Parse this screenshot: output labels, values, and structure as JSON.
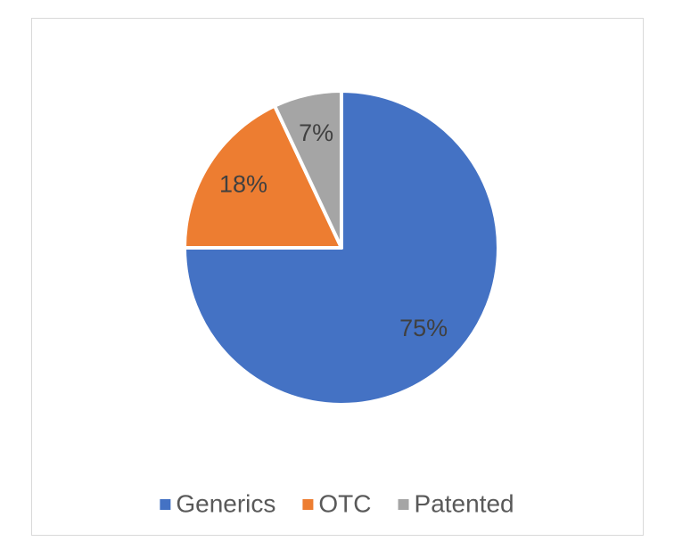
{
  "chart_data": {
    "type": "pie",
    "categories": [
      "Generics",
      "OTC",
      "Patented"
    ],
    "values": [
      75,
      18,
      7
    ],
    "value_labels": [
      "75%",
      "18%",
      "7%"
    ],
    "colors": [
      "#4472c4",
      "#ed7d31",
      "#a5a5a5"
    ],
    "legend": "bottom"
  }
}
